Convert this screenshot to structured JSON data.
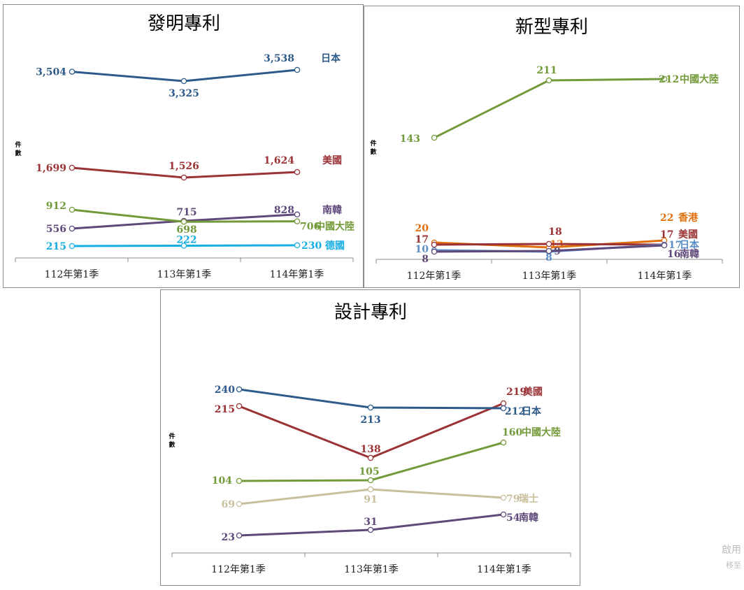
{
  "watermark": {
    "line1": "啟用",
    "line2": "移至"
  },
  "chart_data": [
    {
      "type": "line",
      "title": "發明專利",
      "ylabel": "件數",
      "categories": [
        "112年第1季",
        "113年第1季",
        "114年第1季"
      ],
      "series": [
        {
          "name": "日本",
          "color": "#2e5a8a",
          "values": [
            3504,
            3325,
            3538
          ],
          "labels": [
            "3,504",
            "3,325",
            "3,538"
          ]
        },
        {
          "name": "美國",
          "color": "#9b3336",
          "values": [
            1699,
            1526,
            1624
          ],
          "labels": [
            "1,699",
            "1,526",
            "1,624"
          ]
        },
        {
          "name": "南韓",
          "color": "#5f487a",
          "values": [
            556,
            715,
            828
          ],
          "labels": [
            "556",
            "715",
            "828"
          ]
        },
        {
          "name": "中國大陸",
          "color": "#739a3a",
          "values": [
            912,
            698,
            706
          ],
          "labels": [
            "912",
            "698",
            "706"
          ]
        },
        {
          "name": "德國",
          "color": "#17aee3",
          "values": [
            215,
            222,
            230
          ],
          "labels": [
            "215",
            "222",
            "230"
          ]
        }
      ]
    },
    {
      "type": "line",
      "title": "新型專利",
      "ylabel": "件數",
      "categories": [
        "112年第1季",
        "113年第1季",
        "114年第1季"
      ],
      "series": [
        {
          "name": "中國大陸",
          "color": "#739a3a",
          "values": [
            143,
            211,
            212
          ],
          "labels": [
            "143",
            "211",
            "212"
          ]
        },
        {
          "name": "香港",
          "color": "#e0700c",
          "values": [
            20,
            13,
            22
          ],
          "labels": [
            "20",
            "13",
            "22"
          ]
        },
        {
          "name": "美國",
          "color": "#9b3336",
          "values": [
            17,
            18,
            17
          ],
          "labels": [
            "17",
            "18",
            "17"
          ]
        },
        {
          "name": "日本",
          "color": "#5b8ec5",
          "values": [
            10,
            8,
            17
          ],
          "labels": [
            "10",
            "8",
            "17"
          ]
        },
        {
          "name": "南韓",
          "color": "#5f487a",
          "values": [
            8,
            9,
            16
          ],
          "labels": [
            "8",
            "9",
            "16"
          ]
        }
      ]
    },
    {
      "type": "line",
      "title": "設計專利",
      "ylabel": "件數",
      "categories": [
        "112年第1季",
        "113年第1季",
        "114年第1季"
      ],
      "series": [
        {
          "name": "美國",
          "color": "#9b3336",
          "values": [
            215,
            138,
            219
          ],
          "labels": [
            "215",
            "138",
            "219"
          ]
        },
        {
          "name": "日本",
          "color": "#2e5a8a",
          "values": [
            240,
            213,
            212
          ],
          "labels": [
            "240",
            "213",
            "212"
          ]
        },
        {
          "name": "中國大陸",
          "color": "#739a3a",
          "values": [
            104,
            105,
            160
          ],
          "labels": [
            "104",
            "105",
            "160"
          ]
        },
        {
          "name": "瑞士",
          "color": "#c8bf9c",
          "values": [
            69,
            91,
            79
          ],
          "labels": [
            "69",
            "91",
            "79"
          ]
        },
        {
          "name": "南韓",
          "color": "#5f487a",
          "values": [
            23,
            31,
            54
          ],
          "labels": [
            "23",
            "31",
            "54"
          ]
        }
      ]
    }
  ]
}
